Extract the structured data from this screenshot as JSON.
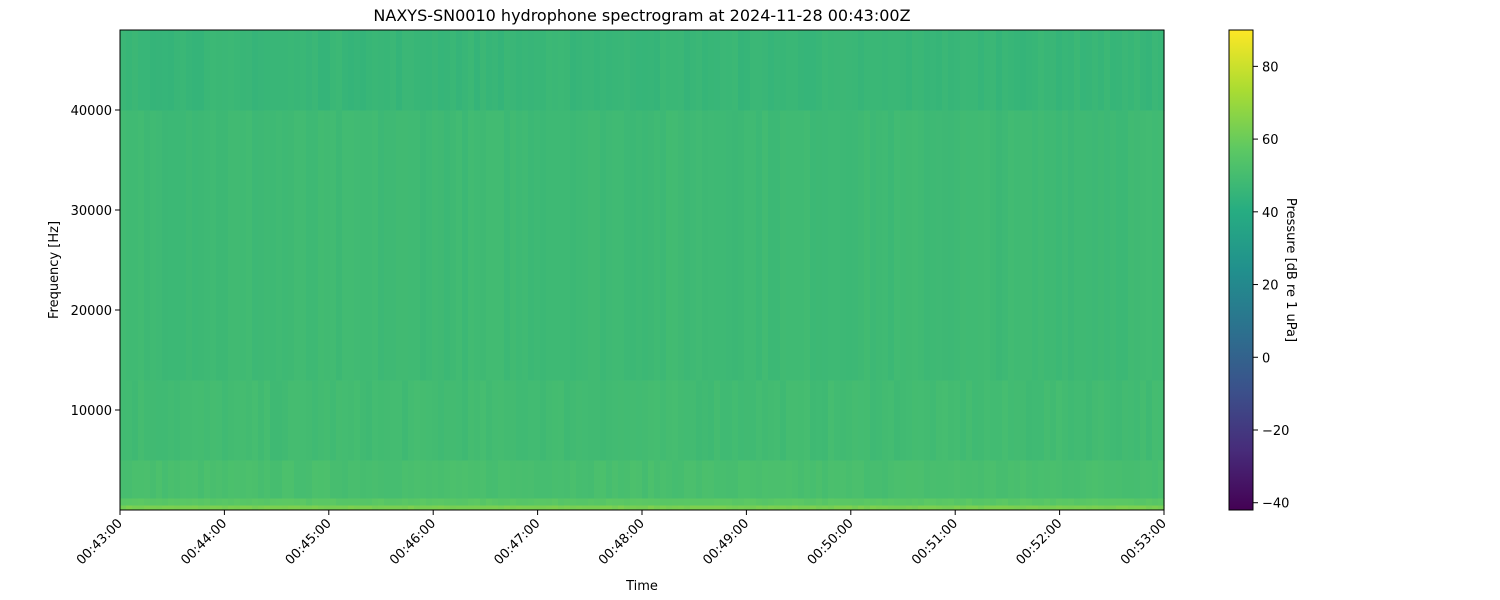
{
  "chart_data": {
    "type": "heatmap",
    "title": "NAXYS-SN0010 hydrophone spectrogram at 2024-11-28 00:43:00Z",
    "xlabel": "Time",
    "ylabel": "Frequency [Hz]",
    "x_ticks": [
      "00:43:00",
      "00:44:00",
      "00:45:00",
      "00:46:00",
      "00:47:00",
      "00:48:00",
      "00:49:00",
      "00:50:00",
      "00:51:00",
      "00:52:00",
      "00:53:00"
    ],
    "y_ticks": [
      10000,
      20000,
      30000,
      40000
    ],
    "ylim": [
      0,
      48000
    ],
    "colormap": "viridis",
    "colorbar": {
      "label": "Pressure [dB re 1 uPa]",
      "range": [
        -42,
        90
      ],
      "ticks": [
        -40,
        -20,
        0,
        20,
        40,
        60,
        80
      ]
    },
    "frequency_bands_db": [
      {
        "from": 0,
        "to": 500,
        "db": 63
      },
      {
        "from": 500,
        "to": 1200,
        "db": 56
      },
      {
        "from": 1200,
        "to": 5000,
        "db": 51
      },
      {
        "from": 5000,
        "to": 13000,
        "db": 49
      },
      {
        "from": 13000,
        "to": 40000,
        "db": 48
      },
      {
        "from": 40000,
        "to": 48000,
        "db": 46
      }
    ],
    "grid": false
  }
}
